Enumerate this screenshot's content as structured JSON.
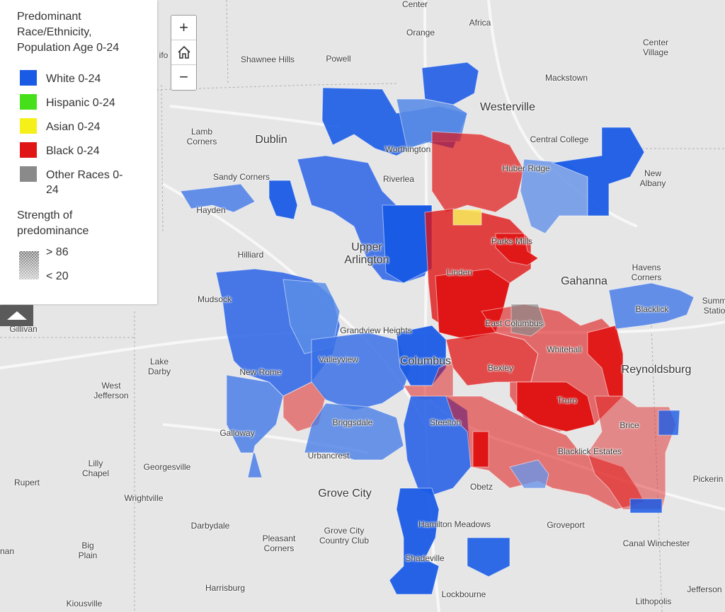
{
  "legend": {
    "title_line1": "Predominant",
    "title_line2": "Race/Ethnicity,",
    "title_line3": "Population Age 0-24",
    "items": [
      {
        "label": "White 0-24",
        "color": "#1a5be6"
      },
      {
        "label": "Hispanic 0-24",
        "color": "#45e01a"
      },
      {
        "label": "Asian 0-24",
        "color": "#f6f01a"
      },
      {
        "label": "Black 0-24",
        "color": "#e01616"
      },
      {
        "label_line1": "Other Races 0-",
        "label_line2": "24",
        "color": "#8a8a8a"
      }
    ],
    "strength_line1": "Strength of",
    "strength_line2": "predominance",
    "high_label": "> 86",
    "low_label": "< 20"
  },
  "zoom": {
    "in": "+",
    "out": "−",
    "home_icon": "home-icon"
  },
  "places": {
    "center": "Center",
    "orange": "Orange",
    "africa": "Africa",
    "center_village_1": "Center",
    "center_village_2": "Village",
    "shawnee_hills": "Shawnee Hills",
    "powell": "Powell",
    "mackstown": "Mackstown",
    "westerville": "Westerville",
    "lamb_corners_1": "Lamb",
    "lamb_corners_2": "Corners",
    "dublin": "Dublin",
    "worthington": "Worthington",
    "central_college": "Central College",
    "new_albany_1": "New",
    "new_albany_2": "Albany",
    "huber_ridge": "Huber Ridge",
    "sandy_corners": "Sandy Corners",
    "riverlea": "Riverlea",
    "hayden": "Hayden",
    "upper_arlington_1": "Upper",
    "upper_arlington_2": "Arlington",
    "hilliard": "Hilliard",
    "parks_mills": "Parks Mills",
    "linden": "Linden",
    "gahanna": "Gahanna",
    "havens_corners_1": "Havens",
    "havens_corners_2": "Corners",
    "mudsock": "Mudsock",
    "blacklick": "Blacklick",
    "summit_station_1": "Summ",
    "summit_station_2": "Statio",
    "gillivan": "Gillivan",
    "grandview_heights": "Grandview Heights",
    "east_columbus": "East Columbus",
    "whitehall": "Whitehall",
    "lake_darby_1": "Lake",
    "lake_darby_2": "Darby",
    "valleyview": "Valleyview",
    "columbus": "Columbus",
    "reynoldsburg": "Reynoldsburg",
    "bexley": "Bexley",
    "new_rome": "New Rome",
    "west_jefferson_1": "West",
    "west_jefferson_2": "Jefferson",
    "truro": "Truro",
    "briggsdale": "Briggsdale",
    "steelton": "Steelton",
    "brice": "Brice",
    "galloway": "Galloway",
    "blacklick_estates": "Blacklick Estates",
    "urbancrest": "Urbancrest",
    "lilly_chapel_1": "Lilly",
    "lilly_chapel_2": "Chapel",
    "georgesville": "Georgesville",
    "rupert": "Rupert",
    "pickerington": "Pickerin",
    "obetz": "Obetz",
    "grove_city": "Grove City",
    "wrightville": "Wrightville",
    "hamilton_meadows": "Hamilton Meadows",
    "darbydale": "Darbydale",
    "groveport": "Groveport",
    "grove_city_cc_1": "Grove City",
    "grove_city_cc_2": "Country Club",
    "pleasant_corners_1": "Pleasant",
    "pleasant_corners_2": "Corners",
    "canal_winchester": "Canal Winchester",
    "big_plain_1": "Big",
    "big_plain_2": "Plain",
    "nan": "nan",
    "shadeville": "Shadeville",
    "harrisburg": "Harrisburg",
    "jefferson": "Jefferson",
    "lockbourne": "Lockbourne",
    "kiousville": "Kiousville",
    "lithopolis": "Lithopolis",
    "plain_city_fragment": "ifo"
  }
}
